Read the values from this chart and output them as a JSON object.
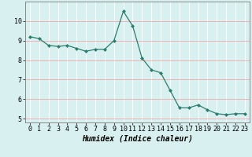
{
  "x": [
    0,
    1,
    2,
    3,
    4,
    5,
    6,
    7,
    8,
    9,
    10,
    11,
    12,
    13,
    14,
    15,
    16,
    17,
    18,
    19,
    20,
    21,
    22,
    23
  ],
  "y": [
    9.2,
    9.1,
    8.75,
    8.7,
    8.75,
    8.6,
    8.45,
    8.55,
    8.55,
    9.0,
    10.5,
    9.75,
    8.1,
    7.5,
    7.35,
    6.45,
    5.55,
    5.55,
    5.7,
    5.45,
    5.25,
    5.2,
    5.25,
    5.25
  ],
  "line_color": "#2d7d6e",
  "marker": "D",
  "marker_size": 2.0,
  "background_color": "#d8f0f0",
  "grid_color": "#ffffff",
  "xlabel": "Humidex (Indice chaleur)",
  "xlabel_fontsize": 7,
  "tick_fontsize": 6,
  "ylim": [
    4.8,
    11.0
  ],
  "xlim": [
    -0.5,
    23.5
  ],
  "yticks": [
    5,
    6,
    7,
    8,
    9,
    10
  ],
  "xticks": [
    0,
    1,
    2,
    3,
    4,
    5,
    6,
    7,
    8,
    9,
    10,
    11,
    12,
    13,
    14,
    15,
    16,
    17,
    18,
    19,
    20,
    21,
    22,
    23
  ]
}
